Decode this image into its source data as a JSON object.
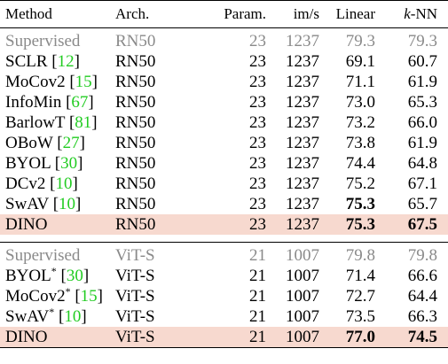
{
  "headers": {
    "method": "Method",
    "arch": "Arch.",
    "param": "Param.",
    "ims": "im/s",
    "linear": "Linear",
    "knn_k": "k",
    "knn_rest": "-NN"
  },
  "rn50": {
    "supervised": {
      "method": "Supervised",
      "arch": "RN50",
      "param": "23",
      "ims": "1237",
      "linear": "79.3",
      "knn": "79.3"
    },
    "rows": [
      {
        "name": "SCLR",
        "cite": "12",
        "arch": "RN50",
        "param": "23",
        "ims": "1237",
        "linear": "69.1",
        "knn": "60.7"
      },
      {
        "name": "MoCov2",
        "cite": "15",
        "arch": "RN50",
        "param": "23",
        "ims": "1237",
        "linear": "71.1",
        "knn": "61.9"
      },
      {
        "name": "InfoMin",
        "cite": "67",
        "arch": "RN50",
        "param": "23",
        "ims": "1237",
        "linear": "73.0",
        "knn": "65.3"
      },
      {
        "name": "BarlowT",
        "cite": "81",
        "arch": "RN50",
        "param": "23",
        "ims": "1237",
        "linear": "73.2",
        "knn": "66.0"
      },
      {
        "name": "OBoW",
        "cite": "27",
        "arch": "RN50",
        "param": "23",
        "ims": "1237",
        "linear": "73.8",
        "knn": "61.9"
      },
      {
        "name": "BYOL",
        "cite": "30",
        "arch": "RN50",
        "param": "23",
        "ims": "1237",
        "linear": "74.4",
        "knn": "64.8"
      },
      {
        "name": "DCv2",
        "cite": "10",
        "arch": "RN50",
        "param": "23",
        "ims": "1237",
        "linear": "75.2",
        "knn": "67.1"
      },
      {
        "name": "SwAV",
        "cite": "10",
        "arch": "RN50",
        "param": "23",
        "ims": "1237",
        "linear": "75.3",
        "knn": "65.7"
      }
    ],
    "dino": {
      "method": "DINO",
      "arch": "RN50",
      "param": "23",
      "ims": "1237",
      "linear": "75.3",
      "knn": "67.5"
    }
  },
  "vits": {
    "supervised": {
      "method": "Supervised",
      "arch": "ViT-S",
      "param": "21",
      "ims": "1007",
      "linear": "79.8",
      "knn": "79.8"
    },
    "rows": [
      {
        "name": "BYOL",
        "star": "*",
        "cite": "30",
        "arch": "ViT-S",
        "param": "21",
        "ims": "1007",
        "linear": "71.4",
        "knn": "66.6"
      },
      {
        "name": "MoCov2",
        "star": "*",
        "cite": "15",
        "arch": "ViT-S",
        "param": "21",
        "ims": "1007",
        "linear": "72.7",
        "knn": "64.4"
      },
      {
        "name": "SwAV",
        "star": "*",
        "cite": "10",
        "arch": "ViT-S",
        "param": "21",
        "ims": "1007",
        "linear": "73.5",
        "knn": "66.3"
      }
    ],
    "dino": {
      "method": "DINO",
      "arch": "ViT-S",
      "param": "21",
      "ims": "1007",
      "linear": "77.0",
      "knn": "74.5"
    }
  },
  "colors": {
    "highlight": "#f7d9cf",
    "citation": "#22cc22",
    "supervised_text": "#8a8a8a"
  }
}
